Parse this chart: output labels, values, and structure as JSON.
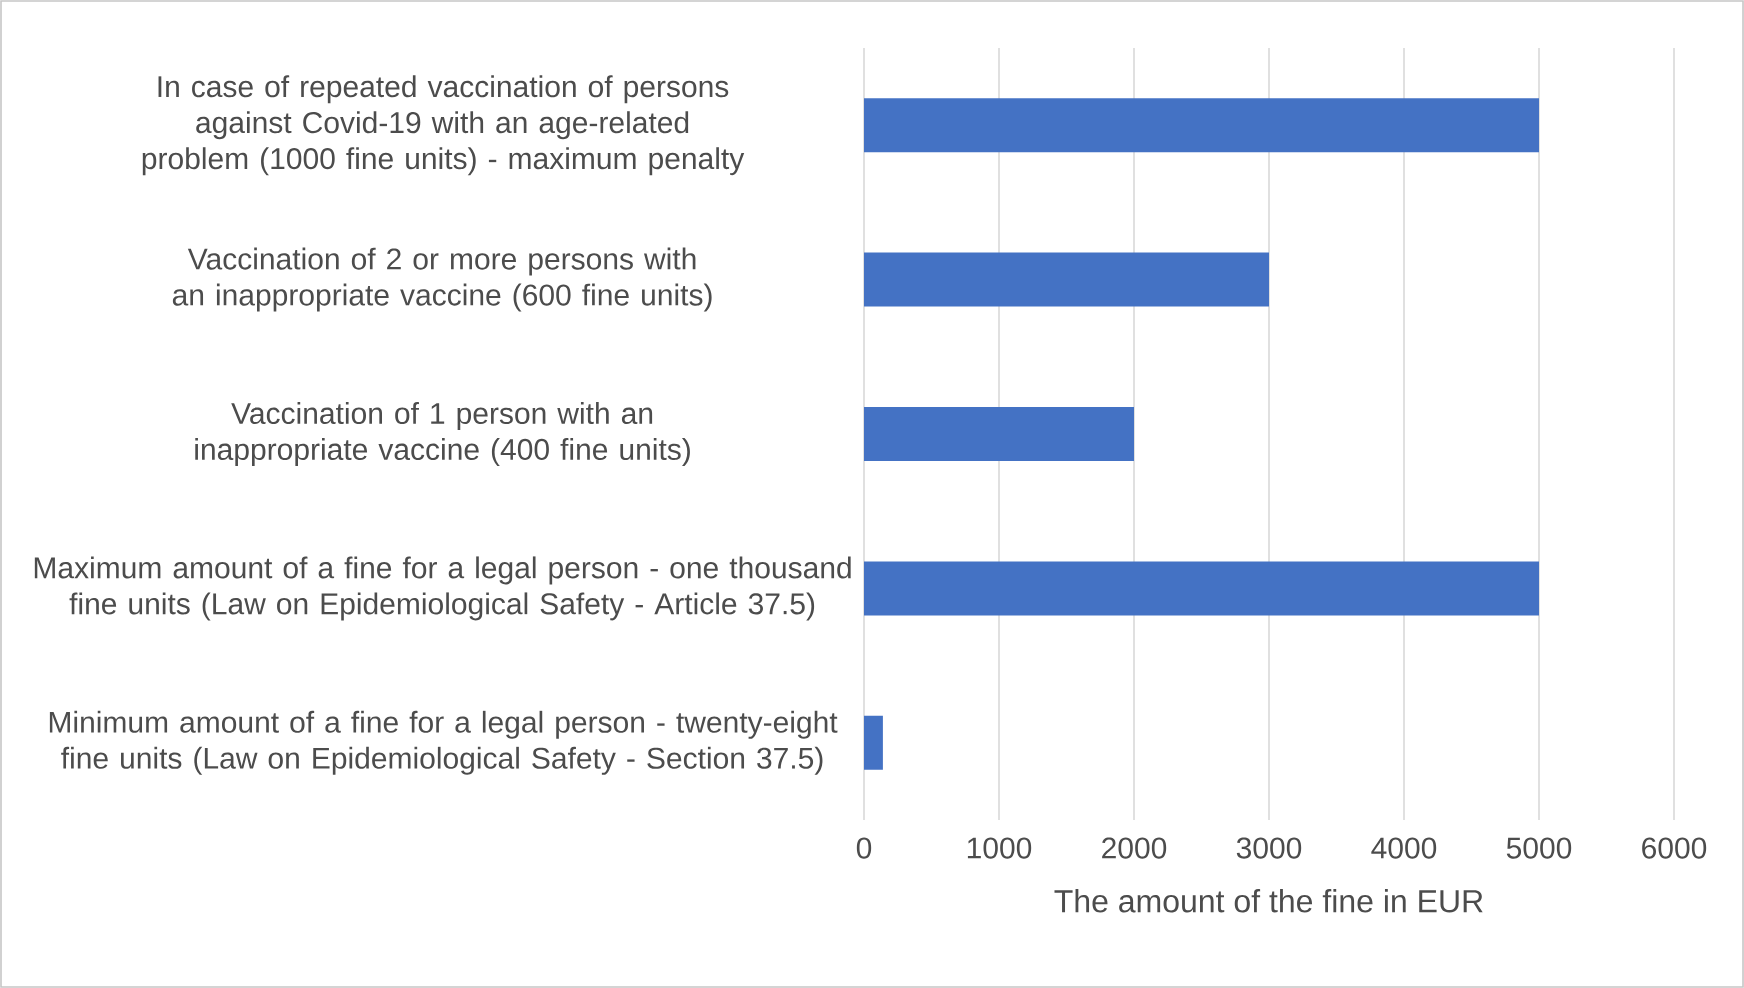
{
  "chart_data": {
    "type": "bar",
    "orientation": "horizontal",
    "categories": [
      "In case of repeated vaccination of persons against Covid-19 with an age-related problem (1000 fine units) - maximum penalty",
      "Vaccination of 2 or more persons with an inappropriate vaccine (600 fine units)",
      "Vaccination of 1 person with an inappropriate vaccine (400 fine units)",
      "Maximum amount of a fine for a legal person - one thousand fine units (Law on Epidemiological Safety - Article 37.5)",
      "Minimum amount of a fine for a legal person - twenty-eight fine units (Law on Epidemiological Safety - Section 37.5)"
    ],
    "values": [
      5000,
      3000,
      2000,
      5000,
      140
    ],
    "color": "#4472c4",
    "xlabel": "The amount of the fine in EUR",
    "xlim": [
      0,
      6000
    ],
    "xticks": [
      0,
      1000,
      2000,
      3000,
      4000,
      5000,
      6000
    ],
    "grid": "x"
  }
}
